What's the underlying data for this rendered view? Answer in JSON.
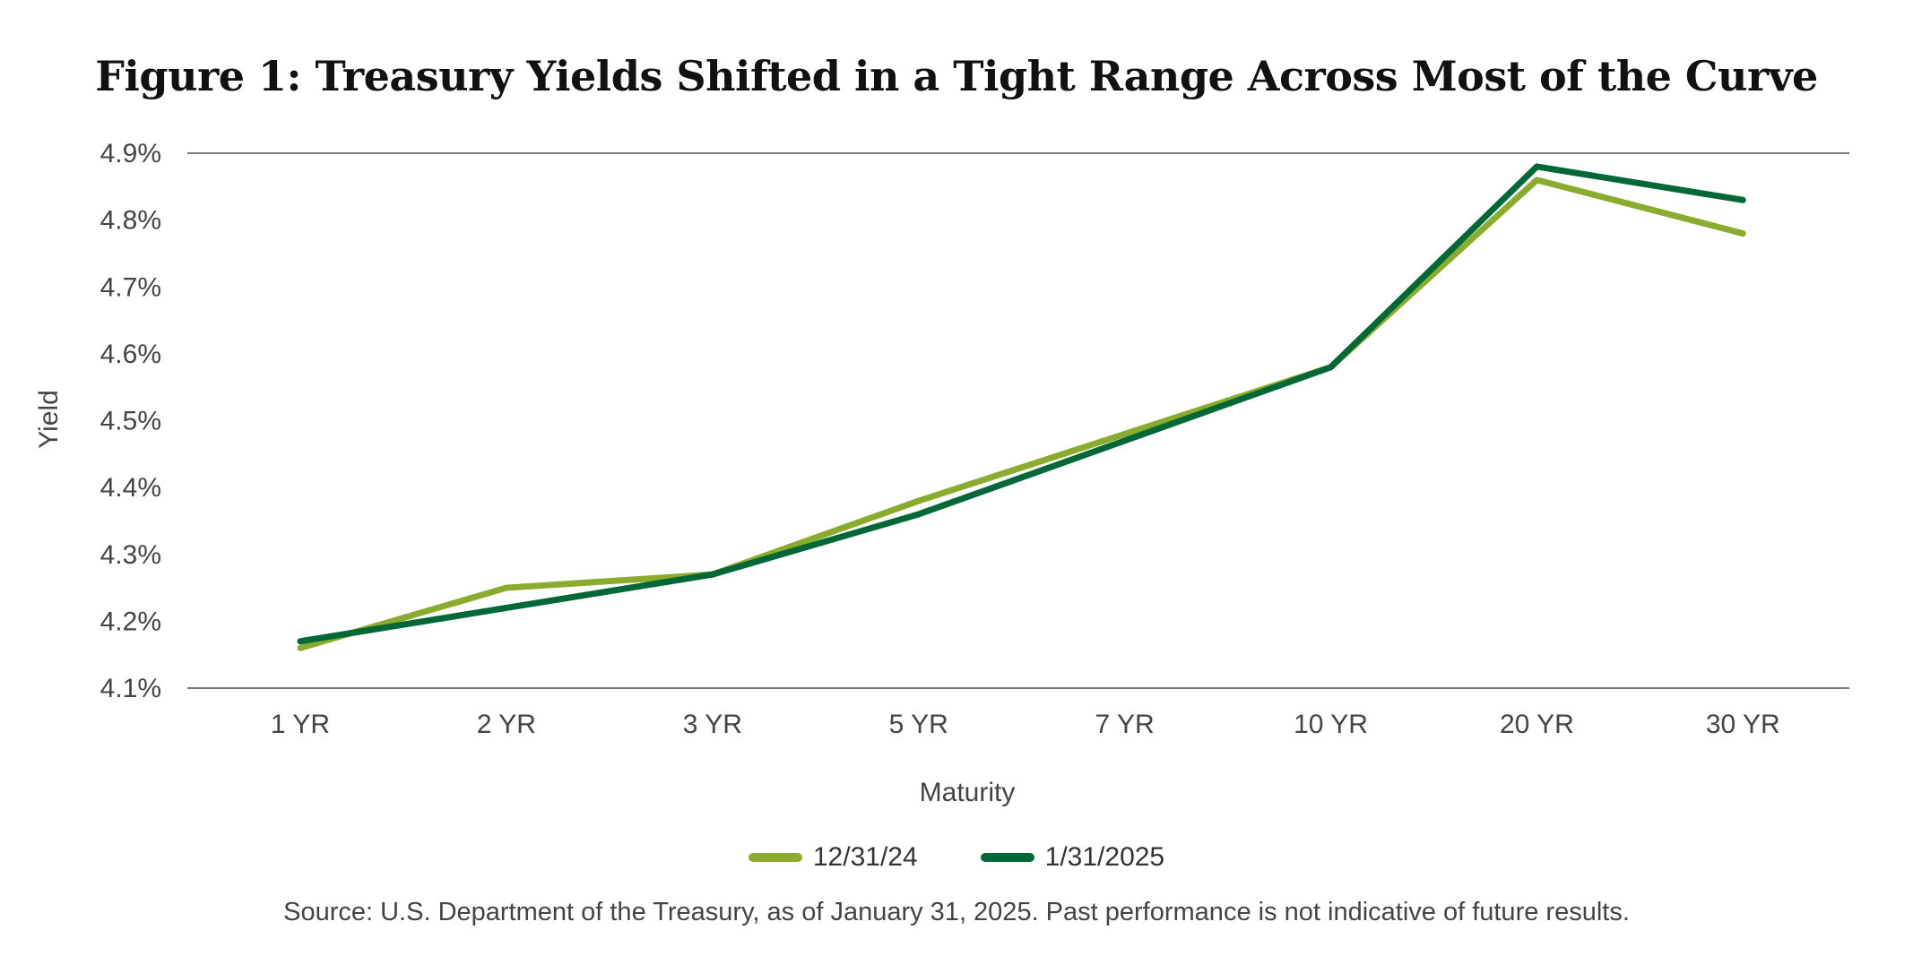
{
  "chart_data": {
    "type": "line",
    "title": "Figure 1: Treasury Yields Shifted in a Tight Range Across Most of the Curve",
    "xlabel": "Maturity",
    "ylabel": "Yield",
    "categories": [
      "1 YR",
      "2 YR",
      "3 YR",
      "5 YR",
      "7 YR",
      "10 YR",
      "20 YR",
      "30 YR"
    ],
    "ylim": [
      4.1,
      4.9
    ],
    "yticks": [
      "4.9%",
      "4.8%",
      "4.7%",
      "4.6%",
      "4.5%",
      "4.4%",
      "4.3%",
      "4.2%",
      "4.1%"
    ],
    "series": [
      {
        "name": "12/31/24",
        "color": "#8aab2e",
        "values": [
          4.16,
          4.25,
          4.27,
          4.38,
          4.48,
          4.58,
          4.86,
          4.78
        ]
      },
      {
        "name": "1/31/2025",
        "color": "#006837",
        "values": [
          4.17,
          4.22,
          4.27,
          4.36,
          4.47,
          4.58,
          4.88,
          4.83
        ]
      }
    ],
    "grid": "top and bottom lines only",
    "legend": "bottom-center",
    "source": "Source: U.S. Department of the Treasury, as of January 31, 2025. Past performance is not indicative of future results."
  }
}
